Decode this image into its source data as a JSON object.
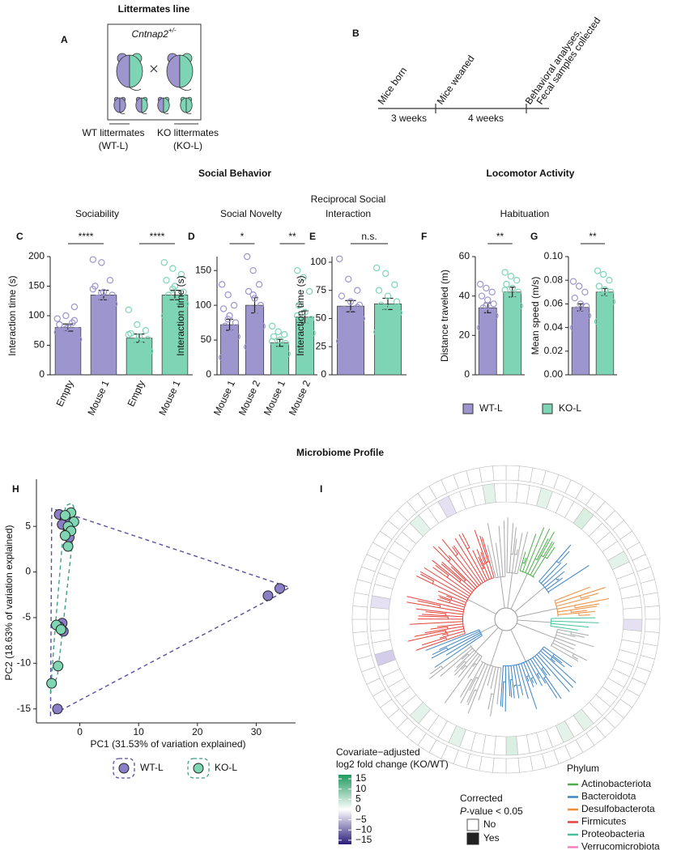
{
  "title": "Littermates line",
  "panel_a": {
    "letter": "A",
    "genotype_name": "Cntnap2",
    "genotype_sup": "+/-",
    "wt_label": [
      "WT littermates",
      "(WT-L)"
    ],
    "ko_label": [
      "KO littermates",
      "(KO-L)"
    ]
  },
  "panel_b": {
    "letter": "B",
    "events": [
      [
        "Mice born"
      ],
      [
        "Mice weaned"
      ],
      [
        "Behavioral analyses,",
        "Fecal samples collected"
      ]
    ],
    "intervals": [
      "3 weeks",
      "4 weeks"
    ]
  },
  "social": {
    "title": "Social Behavior"
  },
  "locomotor": {
    "title": "Locomotor Activity",
    "subtitle": "Habituation"
  },
  "behavior_legend": [
    {
      "name": "WT-L",
      "color": "#9d95cd"
    },
    {
      "name": "KO-L",
      "color": "#7dd5b5"
    }
  ],
  "microbiome": {
    "title": "Microbiome Profile"
  },
  "chart_data": [
    {
      "type": "bar",
      "letter": "C",
      "subtitle": [
        "Sociability"
      ],
      "ylabel": "Interaction time (s)",
      "categories": [
        "Empty",
        "Mouse 1",
        "Empty",
        "Mouse 1"
      ],
      "values": [
        80,
        135,
        62,
        135
      ],
      "errors": [
        6,
        8,
        7,
        8
      ],
      "colors": [
        "#9d95cd",
        "#9d95cd",
        "#7dd5b5",
        "#7dd5b5"
      ],
      "points": [
        [
          95,
          100,
          115,
          85,
          80,
          75,
          70,
          65,
          60,
          55,
          88,
          72,
          78,
          92
        ],
        [
          195,
          190,
          160,
          150,
          140,
          135,
          130,
          125,
          120,
          115,
          110,
          145,
          138,
          128
        ],
        [
          110,
          85,
          75,
          70,
          65,
          60,
          55,
          50,
          40,
          30,
          20,
          68,
          58
        ],
        [
          190,
          180,
          170,
          160,
          150,
          140,
          135,
          125,
          120,
          115,
          105,
          100,
          145
        ]
      ],
      "significance": [
        "****",
        "****"
      ],
      "ylim": [
        0,
        200
      ],
      "yticks": [
        0,
        50,
        100,
        150,
        200
      ]
    },
    {
      "type": "bar",
      "letter": "D",
      "subtitle": [
        "Social Novelty"
      ],
      "ylabel": "Interaction time (s)",
      "categories": [
        "Mouse 1",
        "Mouse 2",
        "Mouse 1",
        "Mouse 2"
      ],
      "values": [
        72,
        100,
        46,
        83
      ],
      "errors": [
        8,
        11,
        5,
        9
      ],
      "colors": [
        "#9d95cd",
        "#9d95cd",
        "#7dd5b5",
        "#7dd5b5"
      ],
      "points": [
        [
          130,
          115,
          100,
          95,
          85,
          75,
          70,
          60,
          55,
          50,
          40,
          25,
          80
        ],
        [
          170,
          150,
          130,
          120,
          110,
          100,
          95,
          85,
          70,
          60,
          50,
          40,
          115
        ],
        [
          70,
          62,
          58,
          55,
          50,
          45,
          40,
          35,
          30,
          25,
          15,
          48
        ],
        [
          150,
          140,
          120,
          100,
          90,
          80,
          75,
          70,
          60,
          55,
          50,
          85
        ]
      ],
      "significance": [
        "*",
        "**"
      ],
      "ylim": [
        0,
        170
      ],
      "yticks": [
        0,
        50,
        100,
        150
      ]
    },
    {
      "type": "bar",
      "letter": "E",
      "subtitle": [
        "Reciprocal Social",
        "Interaction"
      ],
      "ylabel": "Interaction time (s)",
      "categories": [
        null,
        null
      ],
      "values": [
        61,
        63
      ],
      "errors": [
        5,
        5
      ],
      "colors": [
        "#9d95cd",
        "#7dd5b5"
      ],
      "points": [
        [
          103,
          85,
          75,
          70,
          65,
          62,
          58,
          55,
          50,
          45,
          40,
          30,
          20,
          60
        ],
        [
          95,
          90,
          80,
          75,
          70,
          65,
          62,
          58,
          55,
          50,
          45,
          38,
          60
        ]
      ],
      "significance": [
        "n.s."
      ],
      "ylim": [
        0,
        105
      ],
      "yticks": [
        0,
        25,
        50,
        75,
        100
      ]
    },
    {
      "type": "bar",
      "letter": "F",
      "ylabel": "Distance traveled (m)",
      "categories": [
        null,
        null
      ],
      "values": [
        34,
        42
      ],
      "errors": [
        2.5,
        2.5
      ],
      "colors": [
        "#9d95cd",
        "#7dd5b5"
      ],
      "points": [
        [
          46,
          44,
          42,
          40,
          38,
          36,
          34,
          32,
          30,
          28,
          26,
          24,
          35
        ],
        [
          52,
          50,
          48,
          46,
          44,
          42,
          40,
          38,
          35,
          30,
          25,
          43
        ]
      ],
      "significance": [
        "**"
      ],
      "ylim": [
        0,
        60
      ],
      "yticks": [
        0,
        20,
        40,
        60
      ]
    },
    {
      "type": "bar",
      "letter": "G",
      "ylabel": "Mean speed (m/s)",
      "categories": [
        null,
        null
      ],
      "values": [
        0.057,
        0.07
      ],
      "errors": [
        0.003,
        0.003
      ],
      "colors": [
        "#9d95cd",
        "#7dd5b5"
      ],
      "points": [
        [
          0.079,
          0.075,
          0.07,
          0.065,
          0.06,
          0.058,
          0.055,
          0.052,
          0.05,
          0.047,
          0.043,
          0.04
        ],
        [
          0.088,
          0.085,
          0.08,
          0.075,
          0.072,
          0.07,
          0.068,
          0.065,
          0.062,
          0.055,
          0.05,
          0.045
        ]
      ],
      "significance": [
        "**"
      ],
      "ylim": [
        0,
        0.1
      ],
      "yticks": [
        {
          "value": 0,
          "label": "0.00"
        },
        {
          "value": 0.02,
          "label": "0.02"
        },
        {
          "value": 0.04,
          "label": "0.04"
        },
        {
          "value": 0.06,
          "label": "0.06"
        },
        {
          "value": 0.08,
          "label": "0.08"
        },
        {
          "value": 0.1,
          "label": "0.10"
        }
      ]
    },
    {
      "type": "scatter",
      "letter": "H",
      "xlabel": "PC1 (31.53% of variation explained)",
      "ylabel": "PC2 (18.63% of variation explained)",
      "series": [
        {
          "name": "WT-L",
          "color": "#8a7fc6",
          "hull_color": "#5a4fa0",
          "x": [
            -3.5,
            -2.5,
            -2,
            -1.8,
            -3,
            -3,
            -2.8,
            -3.5,
            -3.8,
            32,
            34
          ],
          "y": [
            6.3,
            5.8,
            4.8,
            3.8,
            5.2,
            -5.6,
            -6.5,
            -6,
            -15,
            -2.6,
            -1.8
          ]
        },
        {
          "name": "KO-L",
          "color": "#7ed6b3",
          "hull_color": "#3f9f86",
          "x": [
            -1.5,
            -2.5,
            -1,
            -2,
            -1.5,
            -2.5,
            -2,
            -4,
            -3.7,
            -4.8,
            -3.2
          ],
          "y": [
            6.5,
            6.2,
            5.5,
            5,
            4.5,
            4,
            2.8,
            -5.8,
            -10.3,
            -12.2,
            -6.3
          ]
        }
      ],
      "xlim": [
        -6,
        36
      ],
      "xticks": [
        0,
        10,
        20,
        30
      ],
      "ylim": [
        -16,
        7.5
      ],
      "yticks": [
        -15,
        -10,
        -5,
        0,
        5
      ]
    }
  ],
  "panel_i": {
    "letter": "I",
    "colorbar": {
      "title": [
        "Covariate−adjusted",
        "log2 fold change (KO/WT)"
      ],
      "lim": [
        -17,
        17
      ],
      "ticks": [
        15,
        10,
        5,
        0,
        {
          "value": -5,
          "label": "−5"
        },
        {
          "value": -10,
          "label": "−10"
        },
        {
          "value": -15,
          "label": "−15"
        }
      ]
    },
    "significance_legend": {
      "title": "Corrected",
      "p_symbol": "P",
      "p_rest": "-value < 0.05",
      "no": "No",
      "yes": "Yes"
    },
    "phylum": {
      "title": "Phylum",
      "items": [
        {
          "name": "Actinobacteriota",
          "color": "#4daf4a"
        },
        {
          "name": "Bacteroidota",
          "color": "#3d85c6"
        },
        {
          "name": "Desulfobacterota",
          "color": "#f08c3a"
        },
        {
          "name": "Firmicutes",
          "color": "#e8413a"
        },
        {
          "name": "Proteobacteria",
          "color": "#45c29b"
        },
        {
          "name": "Verrucomicrobiota",
          "color": "#f781bf"
        }
      ]
    }
  }
}
